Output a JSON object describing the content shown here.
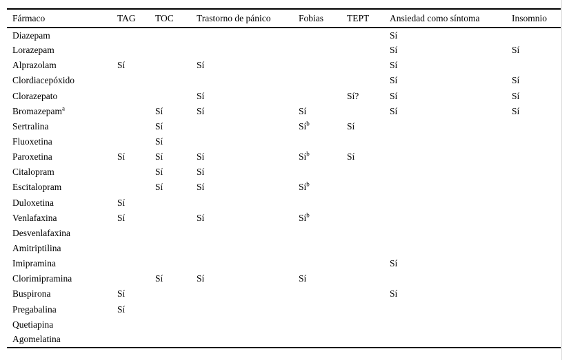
{
  "page": {
    "background": "#ffffff",
    "text_color": "#000000",
    "rule_color": "#000000",
    "edge_line_color": "#d8d8d8"
  },
  "table": {
    "columns": [
      "Fármaco",
      "TAG",
      "TOC",
      "Trastorno de pánico",
      "Fobias",
      "TEPT",
      "Ansiedad como síntoma",
      "Insomnio"
    ],
    "rows": [
      {
        "farmaco": "Diazepam",
        "sup": "",
        "values": [
          "",
          "",
          "",
          "",
          "",
          "Sí",
          ""
        ]
      },
      {
        "farmaco": "Lorazepam",
        "sup": "",
        "values": [
          "",
          "",
          "",
          "",
          "",
          "Sí",
          "Sí"
        ]
      },
      {
        "farmaco": "Alprazolam",
        "sup": "",
        "values": [
          "Sí",
          "",
          "Sí",
          "",
          "",
          "Sí",
          ""
        ]
      },
      {
        "farmaco": "Clordiacepóxido",
        "sup": "",
        "values": [
          "",
          "",
          "",
          "",
          "",
          "Sí",
          "Sí"
        ]
      },
      {
        "farmaco": "Clorazepato",
        "sup": "",
        "values": [
          "",
          "",
          "Sí",
          "",
          "Sí?",
          "Sí",
          "Sí"
        ]
      },
      {
        "farmaco": "Bromazepam",
        "sup": "a",
        "values": [
          "",
          "Sí",
          "Sí",
          "Sí",
          "",
          "Sí",
          "Sí"
        ]
      },
      {
        "farmaco": "Sertralina",
        "sup": "",
        "values": [
          "",
          "Sí",
          "",
          "Sí^b",
          "Sí",
          "",
          ""
        ]
      },
      {
        "farmaco": "Fluoxetina",
        "sup": "",
        "values": [
          "",
          "Sí",
          "",
          "",
          "",
          "",
          ""
        ]
      },
      {
        "farmaco": "Paroxetina",
        "sup": "",
        "values": [
          "Sí",
          "Sí",
          "Sí",
          "Sí^b",
          "Sí",
          "",
          ""
        ]
      },
      {
        "farmaco": "Citalopram",
        "sup": "",
        "values": [
          "",
          "Sí",
          "Sí",
          "",
          "",
          "",
          ""
        ]
      },
      {
        "farmaco": "Escitalopram",
        "sup": "",
        "values": [
          "",
          "Sí",
          "Sí",
          "Sí^b",
          "",
          "",
          ""
        ]
      },
      {
        "farmaco": "Duloxetina",
        "sup": "",
        "values": [
          "Sí",
          "",
          "",
          "",
          "",
          "",
          ""
        ]
      },
      {
        "farmaco": "Venlafaxina",
        "sup": "",
        "values": [
          "Sí",
          "",
          "Sí",
          "Sí^b",
          "",
          "",
          ""
        ]
      },
      {
        "farmaco": "Desvenlafaxina",
        "sup": "",
        "values": [
          "",
          "",
          "",
          "",
          "",
          "",
          ""
        ]
      },
      {
        "farmaco": "Amitriptilina",
        "sup": "",
        "values": [
          "",
          "",
          "",
          "",
          "",
          "",
          ""
        ]
      },
      {
        "farmaco": "Imipramina",
        "sup": "",
        "values": [
          "",
          "",
          "",
          "",
          "",
          "Sí",
          ""
        ]
      },
      {
        "farmaco": "Clorimipramina",
        "sup": "",
        "values": [
          "",
          "Sí",
          "Sí",
          "Sí",
          "",
          "",
          ""
        ]
      },
      {
        "farmaco": "Buspirona",
        "sup": "",
        "values": [
          "Sí",
          "",
          "",
          "",
          "",
          "Sí",
          ""
        ]
      },
      {
        "farmaco": "Pregabalina",
        "sup": "",
        "values": [
          "Sí",
          "",
          "",
          "",
          "",
          "",
          ""
        ]
      },
      {
        "farmaco": "Quetiapina",
        "sup": "",
        "values": [
          "",
          "",
          "",
          "",
          "",
          "",
          ""
        ]
      },
      {
        "farmaco": "Agomelatina",
        "sup": "",
        "values": [
          "",
          "",
          "",
          "",
          "",
          "",
          ""
        ]
      }
    ]
  }
}
